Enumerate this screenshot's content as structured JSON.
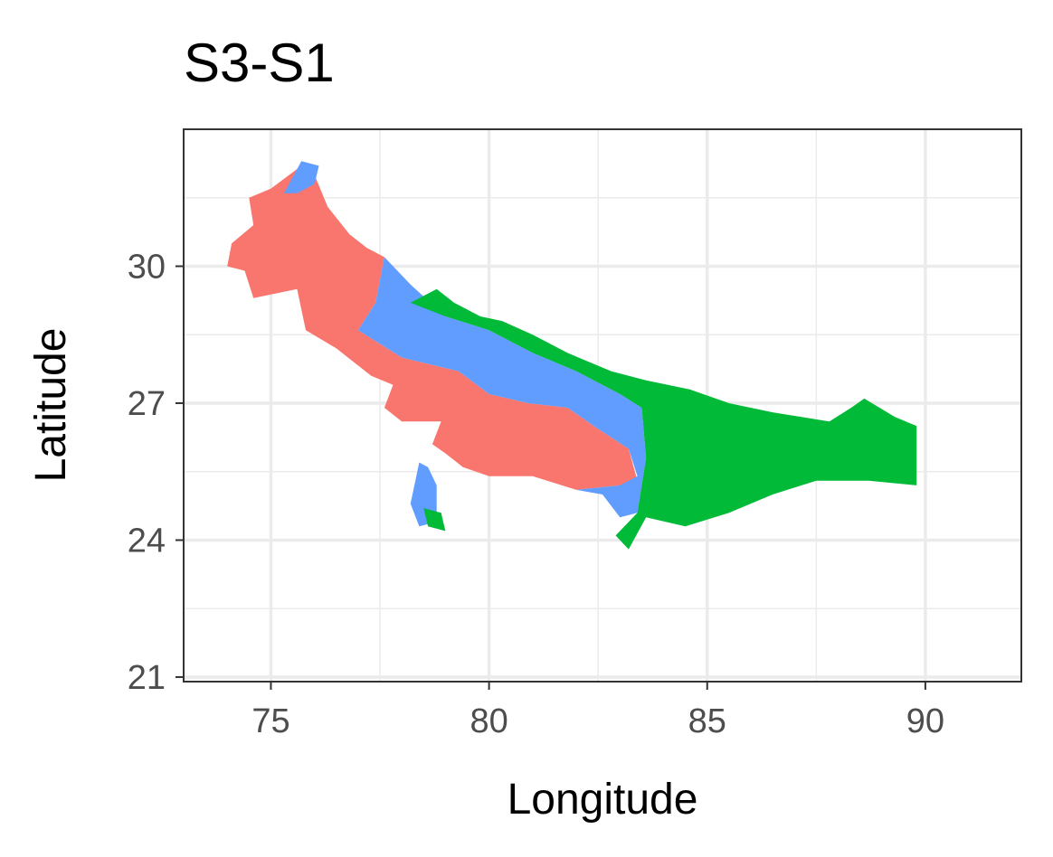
{
  "chart_data": {
    "type": "heatmap",
    "title": "S3-S1",
    "xlabel": "Longitude",
    "ylabel": "Latitude",
    "xlim": [
      73,
      92.2
    ],
    "ylim": [
      20.9,
      33
    ],
    "x_ticks": [
      75,
      80,
      85,
      90
    ],
    "y_ticks": [
      21,
      24,
      27,
      30
    ],
    "grid": true,
    "legend": "none",
    "colors": {
      "red": "#F8766D",
      "green": "#00BA38",
      "blue": "#619CFF"
    },
    "regions": [
      {
        "color": "red",
        "polygon": [
          [
            74.0,
            30.0
          ],
          [
            74.1,
            30.5
          ],
          [
            74.6,
            30.9
          ],
          [
            74.5,
            31.5
          ],
          [
            75.0,
            31.7
          ],
          [
            75.7,
            32.2
          ],
          [
            76.0,
            32.0
          ],
          [
            76.3,
            31.3
          ],
          [
            76.8,
            30.7
          ],
          [
            77.2,
            30.4
          ],
          [
            77.6,
            30.2
          ],
          [
            77.4,
            29.2
          ],
          [
            77.0,
            28.6
          ],
          [
            78.0,
            28.0
          ],
          [
            79.3,
            27.7
          ],
          [
            80.0,
            27.2
          ],
          [
            80.9,
            27.0
          ],
          [
            81.8,
            26.9
          ],
          [
            82.4,
            26.5
          ],
          [
            83.2,
            26.0
          ],
          [
            83.4,
            25.3
          ],
          [
            83.0,
            25.2
          ],
          [
            82.0,
            25.1
          ],
          [
            81.0,
            25.4
          ],
          [
            80.0,
            25.4
          ],
          [
            79.4,
            25.6
          ],
          [
            79.0,
            25.9
          ],
          [
            78.7,
            26.1
          ],
          [
            78.9,
            26.6
          ],
          [
            78.0,
            26.6
          ],
          [
            77.6,
            26.9
          ],
          [
            77.8,
            27.4
          ],
          [
            77.3,
            27.6
          ],
          [
            76.5,
            28.2
          ],
          [
            75.8,
            28.6
          ],
          [
            75.6,
            29.5
          ],
          [
            74.6,
            29.3
          ],
          [
            74.4,
            29.9
          ]
        ]
      },
      {
        "color": "blue",
        "polygon": [
          [
            75.3,
            31.6
          ],
          [
            75.7,
            32.3
          ],
          [
            76.1,
            32.2
          ],
          [
            76.0,
            31.8
          ],
          [
            75.6,
            31.6
          ]
        ]
      },
      {
        "color": "blue",
        "polygon": [
          [
            77.6,
            30.2
          ],
          [
            78.2,
            29.6
          ],
          [
            79.0,
            28.9
          ],
          [
            80.0,
            28.6
          ],
          [
            81.0,
            28.1
          ],
          [
            82.0,
            27.7
          ],
          [
            83.0,
            27.2
          ],
          [
            83.5,
            26.9
          ],
          [
            83.6,
            25.8
          ],
          [
            83.4,
            24.6
          ],
          [
            83.0,
            24.5
          ],
          [
            82.6,
            25.0
          ],
          [
            82.0,
            25.1
          ],
          [
            83.0,
            25.2
          ],
          [
            83.4,
            25.4
          ],
          [
            83.2,
            26.0
          ],
          [
            82.4,
            26.5
          ],
          [
            81.8,
            26.9
          ],
          [
            80.9,
            27.0
          ],
          [
            80.0,
            27.2
          ],
          [
            79.3,
            27.7
          ],
          [
            78.0,
            28.0
          ],
          [
            77.0,
            28.6
          ],
          [
            77.4,
            29.2
          ]
        ]
      },
      {
        "color": "blue",
        "polygon": [
          [
            78.4,
            25.7
          ],
          [
            78.6,
            25.6
          ],
          [
            78.8,
            25.2
          ],
          [
            78.8,
            24.4
          ],
          [
            78.4,
            24.3
          ],
          [
            78.2,
            24.8
          ]
        ]
      },
      {
        "color": "green",
        "polygon": [
          [
            78.2,
            29.2
          ],
          [
            78.8,
            29.5
          ],
          [
            79.2,
            29.2
          ],
          [
            79.8,
            28.9
          ],
          [
            80.3,
            28.8
          ],
          [
            81.0,
            28.5
          ],
          [
            81.8,
            28.1
          ],
          [
            82.8,
            27.7
          ],
          [
            83.6,
            27.5
          ],
          [
            84.6,
            27.3
          ],
          [
            85.5,
            27.0
          ],
          [
            86.5,
            26.8
          ],
          [
            87.8,
            26.6
          ],
          [
            88.3,
            26.9
          ],
          [
            88.6,
            27.1
          ],
          [
            89.3,
            26.7
          ],
          [
            89.8,
            26.5
          ],
          [
            89.8,
            25.2
          ],
          [
            88.7,
            25.3
          ],
          [
            87.5,
            25.3
          ],
          [
            86.5,
            25.0
          ],
          [
            85.5,
            24.6
          ],
          [
            84.5,
            24.3
          ],
          [
            83.6,
            24.5
          ],
          [
            83.2,
            23.8
          ],
          [
            82.9,
            24.1
          ],
          [
            83.4,
            24.6
          ],
          [
            83.6,
            25.8
          ],
          [
            83.5,
            26.9
          ],
          [
            83.0,
            27.2
          ],
          [
            82.0,
            27.7
          ],
          [
            81.0,
            28.1
          ],
          [
            80.0,
            28.6
          ],
          [
            79.0,
            28.9
          ]
        ]
      },
      {
        "color": "green",
        "polygon": [
          [
            78.5,
            24.7
          ],
          [
            78.9,
            24.6
          ],
          [
            79.0,
            24.2
          ],
          [
            78.6,
            24.3
          ]
        ]
      }
    ]
  }
}
